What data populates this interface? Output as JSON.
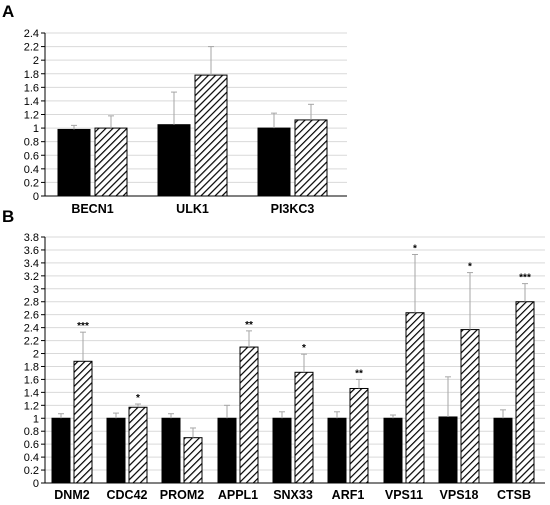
{
  "colors": {
    "control": "#000000",
    "treated_hatch": "#000000",
    "error_bar": "#a6a6a6",
    "grid": "#d9d9d9"
  },
  "chart_data": [
    {
      "panel_label": "A",
      "type": "bar",
      "categories": [
        "BECN1",
        "ULK1",
        "PI3KC3"
      ],
      "series": [
        {
          "style": "solid-black",
          "values": [
            0.98,
            1.05,
            1.0
          ],
          "errors": [
            0.06,
            0.48,
            0.22
          ]
        },
        {
          "style": "hatched",
          "values": [
            1.0,
            1.78,
            1.12
          ],
          "errors": [
            0.18,
            0.42,
            0.23
          ]
        }
      ],
      "significance": [
        "",
        "",
        ""
      ],
      "ylim": [
        0,
        2.4
      ],
      "yticks": [
        "0",
        "0.2",
        "0.4",
        "0.6",
        "0.8",
        "1",
        "1.2",
        "1.4",
        "1.6",
        "1.8",
        "2",
        "2.2",
        "2.4"
      ],
      "grid": true
    },
    {
      "panel_label": "B",
      "type": "bar",
      "categories": [
        "DNM2",
        "CDC42",
        "PROM2",
        "APPL1",
        "SNX33",
        "ARF1",
        "VPS11",
        "VPS18",
        "CTSB"
      ],
      "series": [
        {
          "style": "solid-black",
          "values": [
            1.0,
            1.0,
            1.0,
            1.0,
            1.0,
            1.0,
            1.0,
            1.02,
            1.0
          ],
          "errors": [
            0.07,
            0.08,
            0.07,
            0.2,
            0.1,
            0.1,
            0.05,
            0.62,
            0.13
          ]
        },
        {
          "style": "hatched",
          "values": [
            1.88,
            1.17,
            0.7,
            2.1,
            1.71,
            1.46,
            2.63,
            2.37,
            2.8
          ],
          "errors": [
            0.45,
            0.05,
            0.15,
            0.25,
            0.28,
            0.14,
            0.9,
            0.88,
            0.28
          ]
        }
      ],
      "significance": [
        "***",
        "*",
        "",
        "**",
        "*",
        "**",
        "*",
        "*",
        "***"
      ],
      "ylim": [
        0,
        3.8
      ],
      "yticks": [
        "0",
        "0.2",
        "0.4",
        "0.6",
        "0.8",
        "1",
        "1.2",
        "1.4",
        "1.6",
        "1.8",
        "2",
        "2.2",
        "2.4",
        "2.6",
        "2.8",
        "3",
        "3.2",
        "3.4",
        "3.6",
        "3.8"
      ],
      "grid": true
    }
  ]
}
